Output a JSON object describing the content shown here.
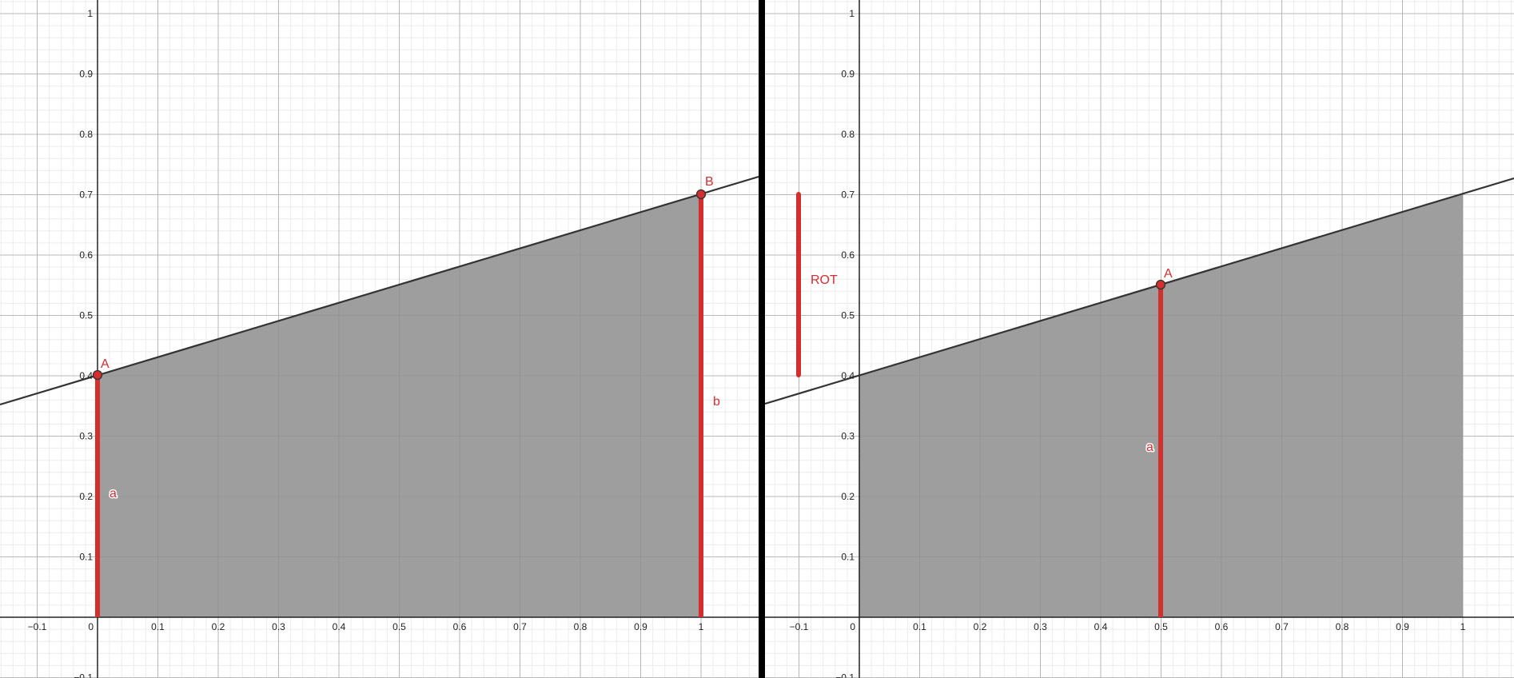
{
  "colors": {
    "accent": "#d32f2f",
    "region": "#999999",
    "line": "#333333",
    "divider": "#000000"
  },
  "left_graph": {
    "x_ticks": [
      "−0.1",
      "0",
      "0.1",
      "0.2",
      "0.3",
      "0.4",
      "0.5",
      "0.6",
      "0.7",
      "0.8",
      "0.9",
      "1",
      "1"
    ],
    "y_ticks": [
      "0.1",
      "0.2",
      "0.3",
      "0.4",
      "0.5",
      "0.6",
      "0.7",
      "0.8",
      "0.9",
      "1"
    ],
    "y_bottom_partial": "0.1",
    "point_A": {
      "label": "A",
      "x": 0,
      "y": 0.4
    },
    "point_B": {
      "label": "B",
      "x": 1,
      "y": 0.7
    },
    "segment_a_label": "a",
    "segment_b_label": "b"
  },
  "right_graph": {
    "x_ticks": [
      "−0.1",
      "0",
      "0.1",
      "0.2",
      "0.3",
      "0.4",
      "0.5",
      "0.6",
      "0.7",
      "0.8",
      "0.9",
      "1"
    ],
    "y_ticks": [
      "0.1",
      "0.2",
      "0.3",
      "0.4",
      "0.5",
      "0.6",
      "0.7",
      "0.8",
      "0.9",
      "1"
    ],
    "y_bottom_partial": "0.1",
    "point_A": {
      "label": "A",
      "x": 0.5,
      "y": 0.55
    },
    "segment_a_label": "a",
    "rot_label": "ROT"
  }
}
